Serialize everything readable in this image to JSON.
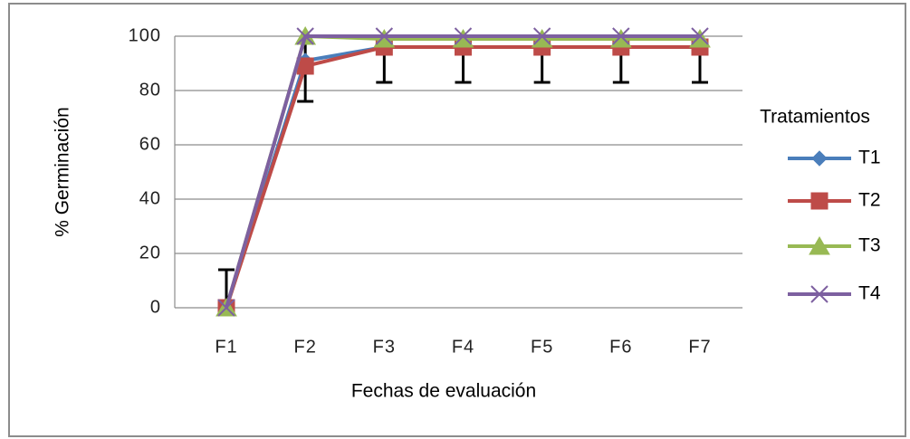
{
  "chart_data": {
    "type": "line",
    "x_label": "Fechas de evaluación",
    "y_label": "% Germinación",
    "legend_title": "Tratamientos",
    "legend_position": "right",
    "categories": [
      "F1",
      "F2",
      "F3",
      "F4",
      "F5",
      "F6",
      "F7"
    ],
    "series": [
      {
        "name": "T1",
        "color": "#4a7ebb",
        "marker": "diamond",
        "values": [
          0,
          91,
          96,
          96,
          96,
          96,
          96
        ]
      },
      {
        "name": "T2",
        "color": "#be4b48",
        "marker": "square",
        "values": [
          0,
          89,
          96,
          96,
          96,
          96,
          96
        ],
        "errors": [
          14,
          13,
          13,
          13,
          13,
          13,
          13
        ]
      },
      {
        "name": "T3",
        "color": "#98b954",
        "marker": "triangle",
        "values": [
          0,
          100,
          99,
          99,
          99,
          99,
          99
        ]
      },
      {
        "name": "T4",
        "color": "#7d60a0",
        "marker": "x",
        "values": [
          0,
          100,
          100,
          100,
          100,
          100,
          100
        ]
      }
    ],
    "ylim": [
      0,
      100
    ],
    "yticks": [
      0,
      20,
      40,
      60,
      80,
      100
    ],
    "grid": true
  }
}
